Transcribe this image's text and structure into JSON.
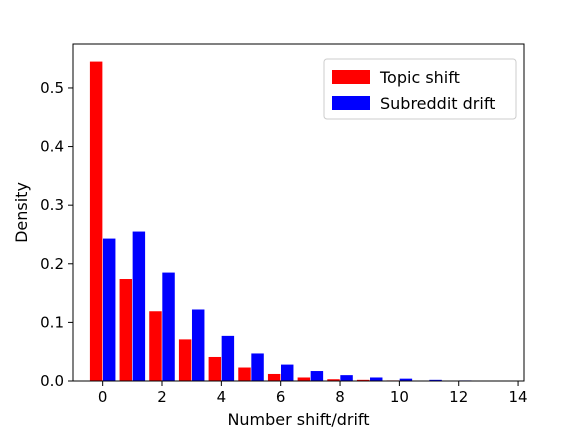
{
  "chart_data": {
    "type": "bar",
    "title": "",
    "xlabel": "Number shift/drift",
    "ylabel": "Density",
    "xlim": [
      -1,
      14.2
    ],
    "ylim": [
      0,
      0.575
    ],
    "xticks": [
      0,
      2,
      4,
      6,
      8,
      10,
      12,
      14
    ],
    "yticks": [
      0.0,
      0.1,
      0.2,
      0.3,
      0.4,
      0.5
    ],
    "grid": false,
    "legend_position": "top-right",
    "series": [
      {
        "name": "Topic shift",
        "color": "#ff0000",
        "x": [
          0,
          1,
          2,
          3,
          4,
          5,
          6,
          7,
          8,
          9,
          10,
          11,
          12,
          13
        ],
        "values": [
          0.545,
          0.174,
          0.119,
          0.071,
          0.041,
          0.023,
          0.012,
          0.006,
          0.003,
          0.002,
          0.001,
          0.0005,
          0.0003,
          0.0002
        ]
      },
      {
        "name": "Subreddit drift",
        "color": "#0000ff",
        "x": [
          0,
          1,
          2,
          3,
          4,
          5,
          6,
          7,
          8,
          9,
          10,
          11,
          12,
          13
        ],
        "values": [
          0.243,
          0.255,
          0.185,
          0.122,
          0.077,
          0.047,
          0.028,
          0.017,
          0.01,
          0.006,
          0.004,
          0.002,
          0.001,
          0.0005
        ]
      }
    ]
  }
}
